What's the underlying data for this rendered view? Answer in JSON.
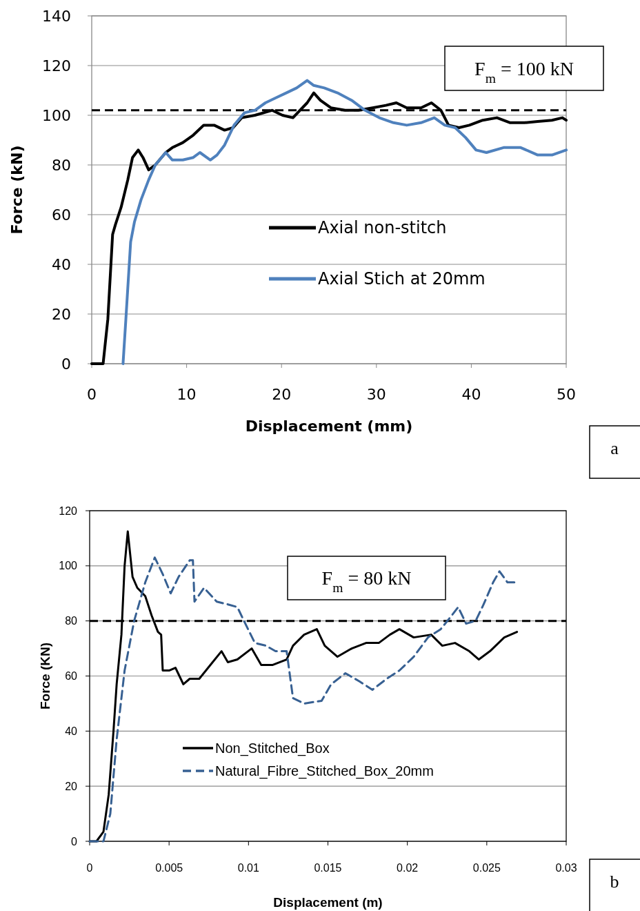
{
  "chart_data": [
    {
      "type": "line",
      "xlabel": "Displacement (mm)",
      "ylabel": "Force (kN)",
      "xlim": [
        0,
        50
      ],
      "ylim": [
        0,
        140
      ],
      "xticks": [
        0,
        10,
        20,
        30,
        40,
        50
      ],
      "yticks": [
        0,
        20,
        40,
        60,
        80,
        100,
        120,
        140
      ],
      "grid": "y",
      "legend": "right",
      "marker": "none",
      "line_style": "solid",
      "series": [
        {
          "name": "Axial non-stitch",
          "color": "#000000",
          "x": [
            0,
            1.2,
            1.7,
            2.2,
            2.5,
            3.1,
            3.8,
            4.3,
            4.9,
            5.4,
            6.0,
            6.7,
            7.8,
            8.5,
            9.6,
            10.7,
            11.8,
            12.9,
            14.0,
            14.9,
            15.8,
            17.2,
            19.0,
            20.1,
            21.2,
            22.7,
            23.4,
            24.1,
            25.2,
            26.7,
            28.1,
            29.6,
            31.0,
            32.1,
            33.2,
            34.7,
            35.8,
            36.8,
            37.6,
            38.7,
            39.8,
            41.2,
            42.7,
            44.1,
            45.6,
            47.0,
            48.5,
            49.6,
            50
          ],
          "values": [
            0,
            0,
            18,
            52,
            56,
            63,
            74,
            83,
            86,
            83,
            78,
            80,
            85,
            87,
            89,
            92,
            96,
            96,
            94,
            95,
            99,
            100,
            102,
            100,
            99,
            105,
            109,
            106,
            103,
            102,
            102,
            103,
            104,
            105,
            103,
            103,
            105,
            102,
            96,
            95,
            96,
            98,
            99,
            97,
            97,
            97.5,
            98,
            99,
            98
          ]
        },
        {
          "name": "Axial Stich at 20mm",
          "color": "#4f81bd",
          "x": [
            3.3,
            3.6,
            4.1,
            4.5,
            5.2,
            6.0,
            6.7,
            7.8,
            8.5,
            9.6,
            10.7,
            11.4,
            12.5,
            13.2,
            14.0,
            15.0,
            16.1,
            17.2,
            18.3,
            19.4,
            20.5,
            21.6,
            22.7,
            23.4,
            24.5,
            25.9,
            27.4,
            28.8,
            30.3,
            31.8,
            33.2,
            34.7,
            36.1,
            37.2,
            38.3,
            39.4,
            40.5,
            41.6,
            43.4,
            45.2,
            47.0,
            48.5,
            50
          ],
          "values": [
            0,
            18,
            49,
            57,
            66,
            74,
            80,
            85,
            82,
            82,
            83,
            85,
            82,
            84,
            88,
            96,
            101,
            102,
            105,
            107,
            109,
            111,
            114,
            112,
            111,
            109,
            106,
            102,
            99,
            97,
            96,
            97,
            99,
            96,
            95,
            91,
            86,
            85,
            87,
            87,
            84,
            84,
            86
          ]
        }
      ],
      "ref_lines": [
        {
          "axis": "y",
          "value": 102,
          "color": "#000000",
          "line_style": "dashed"
        }
      ],
      "annotations": [
        "F$_{m}$ = 100 kN",
        "a"
      ]
    },
    {
      "type": "line",
      "xlabel": "Displacement (m)",
      "ylabel": "Force (KN)",
      "xlim": [
        0,
        0.03
      ],
      "ylim": [
        0,
        120
      ],
      "xticks": [
        0,
        0.005,
        0.01,
        0.015,
        0.02,
        0.025,
        0.03
      ],
      "yticks": [
        0,
        20,
        40,
        60,
        80,
        100,
        120
      ],
      "grid": "y",
      "legend": "bottom left",
      "marker": "none",
      "series": [
        {
          "name": "Non_Stitched_Box",
          "color": "#000000",
          "line_style": "solid",
          "x": [
            0,
            0.00043,
            0.00087,
            0.0012,
            0.0015,
            0.0017,
            0.002,
            0.0022,
            0.0024,
            0.0025,
            0.0027,
            0.003,
            0.0035,
            0.0039,
            0.0043,
            0.0045,
            0.0046,
            0.005,
            0.0054,
            0.0059,
            0.0063,
            0.0069,
            0.0076,
            0.0083,
            0.0087,
            0.0093,
            0.0102,
            0.0108,
            0.0115,
            0.0124,
            0.0128,
            0.0135,
            0.0143,
            0.0148,
            0.0156,
            0.0165,
            0.0174,
            0.0182,
            0.0189,
            0.0195,
            0.0204,
            0.0215,
            0.0222,
            0.023,
            0.0239,
            0.0245,
            0.0252,
            0.0261,
            0.0269
          ],
          "values": [
            0,
            0,
            3.5,
            17,
            40,
            57,
            75,
            100,
            112.5,
            107,
            96,
            92,
            89,
            82,
            76,
            75,
            62,
            62,
            63,
            57,
            59,
            59,
            64,
            69,
            65,
            66,
            70,
            64,
            64,
            66,
            71,
            75,
            77,
            71,
            67,
            70,
            72,
            72,
            75,
            77,
            74,
            75,
            71,
            72,
            69,
            66,
            69,
            74,
            76
          ]
        },
        {
          "name": "Natural_Fibre_Stitched_Box_20mm",
          "color": "#376092",
          "line_style": "dashed",
          "x": [
            0,
            0.00087,
            0.0013,
            0.0017,
            0.0022,
            0.0028,
            0.0035,
            0.0041,
            0.0046,
            0.0051,
            0.0056,
            0.0063,
            0.0065,
            0.0066,
            0.0072,
            0.008,
            0.0087,
            0.0093,
            0.0098,
            0.0104,
            0.0111,
            0.0117,
            0.0124,
            0.0128,
            0.0135,
            0.0146,
            0.0152,
            0.0161,
            0.017,
            0.0178,
            0.0187,
            0.0195,
            0.0204,
            0.0213,
            0.0221,
            0.0228,
            0.0232,
            0.0237,
            0.0243,
            0.0248,
            0.0254,
            0.0258,
            0.0263,
            0.0268
          ],
          "values": [
            0,
            0,
            10,
            37,
            62,
            80,
            94,
            103,
            97,
            90,
            96,
            102,
            102,
            87,
            92,
            87,
            86,
            85,
            79,
            72,
            71,
            69,
            69,
            52,
            50,
            51,
            57,
            61,
            58,
            55,
            59,
            62,
            67,
            74,
            77,
            82,
            85,
            79,
            80,
            86,
            94,
            98,
            94,
            94
          ]
        }
      ],
      "ref_lines": [
        {
          "axis": "y",
          "value": 80,
          "color": "#000000",
          "line_style": "dashed"
        }
      ],
      "annotations": [
        "F$_{m}$ = 80 kN",
        "b"
      ]
    }
  ]
}
